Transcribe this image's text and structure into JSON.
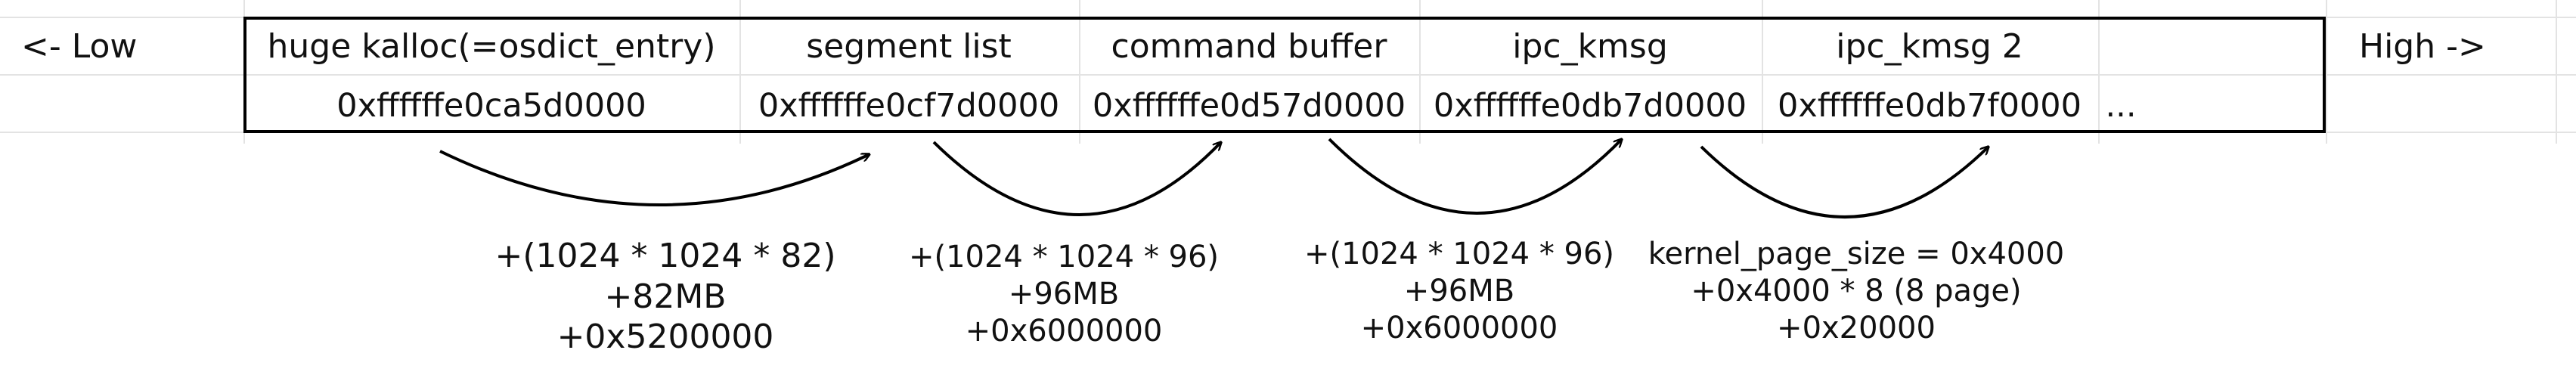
{
  "left_label": "<- Low",
  "right_label": "High ->",
  "segments": [
    {
      "name": "huge kalloc(=osdict_entry)",
      "address": "0xffffffe0ca5d0000"
    },
    {
      "name": "segment list",
      "address": "0xffffffe0cf7d0000"
    },
    {
      "name": "command buffer",
      "address": "0xffffffe0d57d0000"
    },
    {
      "name": "ipc_kmsg",
      "address": "0xffffffe0db7d0000"
    },
    {
      "name": "ipc_kmsg 2",
      "address": "0xffffffe0db7f0000"
    }
  ],
  "ellipsis": "...",
  "annotations": [
    {
      "lines": [
        "+(1024 * 1024 * 82)",
        "+82MB",
        "+0x5200000"
      ]
    },
    {
      "lines": [
        "+(1024 * 1024 * 96)",
        "+96MB",
        "+0x6000000"
      ]
    },
    {
      "lines": [
        "+(1024 * 1024 * 96)",
        "+96MB",
        "+0x6000000"
      ]
    },
    {
      "lines": [
        "kernel_page_size = 0x4000",
        "+0x4000 * 8 (8 page)",
        "+0x20000"
      ]
    }
  ]
}
